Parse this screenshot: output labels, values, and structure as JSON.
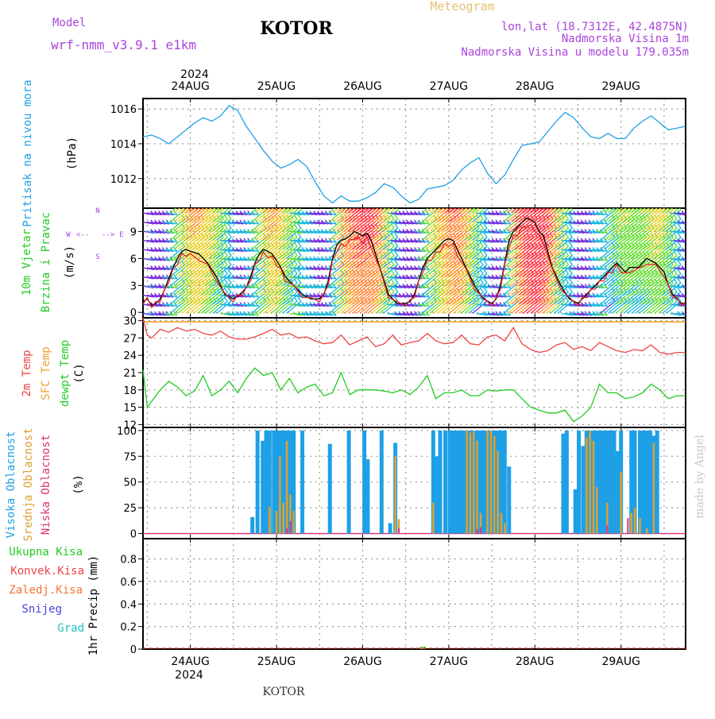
{
  "header": {
    "model_label": "Model",
    "model_value": "wrf-nmm_v3.9.1 e1km",
    "station": "KOTOR",
    "meteogram_label": "Meteogram",
    "lonlat": "lon,lat (18.7312E, 42.4875N)",
    "elevation": "Nadmorska Visina 1m",
    "model_elevation": "Nadmorska Visina u modelu 179.035m"
  },
  "footer": {
    "station": "KOTOR",
    "watermark": "made by Angel"
  },
  "colors": {
    "pressure": "#1ea0e6",
    "wind_axis_label": "#22cc22",
    "temp2m": "#ee4444",
    "sfc_temp": "#f0a030",
    "dewpoint": "#22cc22",
    "high_cloud": "#1ea0e6",
    "mid_cloud": "#e0a030",
    "low_cloud": "#e0307a",
    "total_precip": "#22cc22",
    "conv_precip": "#ee4444",
    "frozen_precip": "#f07830",
    "snow": "#4444dd",
    "hail": "#22c0c0",
    "model_text": "#aa44dd",
    "meteogram_text": "#e8c070"
  },
  "chart_data": [
    {
      "type": "line",
      "title": "",
      "ylabel_lines": [
        "Pritisak na nivou mora",
        "(hPa)"
      ],
      "x_unit": "days since 24AUG 00 UTC",
      "xlim": [
        -0.55,
        5.75
      ],
      "ylim": [
        1010.3,
        1016.6
      ],
      "yticks": [
        1012,
        1014,
        1016
      ],
      "series": [
        {
          "x": [
            -0.55,
            -0.45,
            -0.35,
            -0.25,
            -0.15,
            -0.05,
            0.05,
            0.15,
            0.25,
            0.35,
            0.45,
            0.55,
            0.65,
            0.75,
            0.85,
            0.95,
            1.05,
            1.15,
            1.25,
            1.35,
            1.45,
            1.55,
            1.65,
            1.75,
            1.85,
            1.95,
            2.05,
            2.15,
            2.25,
            2.35,
            2.45,
            2.55,
            2.65,
            2.75,
            2.85,
            2.95,
            3.05,
            3.15,
            3.25,
            3.35,
            3.45,
            3.55,
            3.65,
            3.75,
            3.85,
            3.95,
            4.05,
            4.15,
            4.25,
            4.35,
            4.45,
            4.55,
            4.65,
            4.75,
            4.85,
            4.95,
            5.05,
            5.15,
            5.25,
            5.35,
            5.45,
            5.55,
            5.65,
            5.75
          ],
          "y": [
            1014.4,
            1014.5,
            1014.3,
            1014.0,
            1014.4,
            1014.8,
            1015.2,
            1015.5,
            1015.3,
            1015.6,
            1016.2,
            1015.9,
            1015.0,
            1014.3,
            1013.6,
            1013.0,
            1012.6,
            1012.8,
            1013.1,
            1012.7,
            1011.8,
            1011.0,
            1010.6,
            1011.0,
            1010.7,
            1010.7,
            1010.9,
            1011.2,
            1011.7,
            1011.5,
            1011.0,
            1010.6,
            1010.8,
            1011.4,
            1011.5,
            1011.6,
            1011.9,
            1012.5,
            1012.9,
            1013.2,
            1012.3,
            1011.7,
            1012.2,
            1013.1,
            1013.9,
            1014.0,
            1014.1,
            1014.7,
            1015.3,
            1015.8,
            1015.5,
            1014.9,
            1014.4,
            1014.3,
            1014.6,
            1014.3,
            1014.3,
            1014.9,
            1015.3,
            1015.6,
            1015.2,
            1014.8,
            1014.9,
            1015.0
          ]
        }
      ]
    },
    {
      "type": "line",
      "title": "",
      "ylabel_lines": [
        "10m Vjetar",
        "Brzina i Pravac",
        "(m/s)"
      ],
      "compass": {
        "n": "N",
        "w": "W",
        "e": "E",
        "s": "S",
        "arrow_left": "<--",
        "arrow_right": "-->"
      },
      "x_unit": "days since 24AUG 00 UTC",
      "xlim": [
        -0.55,
        5.75
      ],
      "ylim": [
        -0.6,
        11.6
      ],
      "yticks": [
        0,
        3,
        6,
        9
      ],
      "series": [
        {
          "name": "speed",
          "x": [
            -0.55,
            -0.5,
            -0.45,
            -0.4,
            -0.35,
            -0.3,
            -0.25,
            -0.2,
            -0.15,
            -0.1,
            -0.05,
            0.0,
            0.1,
            0.2,
            0.3,
            0.4,
            0.5,
            0.55,
            0.6,
            0.65,
            0.7,
            0.75,
            0.8,
            0.85,
            0.9,
            0.95,
            1.0,
            1.05,
            1.1,
            1.2,
            1.3,
            1.4,
            1.5,
            1.55,
            1.6,
            1.65,
            1.7,
            1.75,
            1.8,
            1.85,
            1.9,
            1.95,
            2.0,
            2.05,
            2.1,
            2.2,
            2.3,
            2.4,
            2.5,
            2.55,
            2.6,
            2.65,
            2.7,
            2.75,
            2.8,
            2.85,
            2.9,
            2.95,
            3.0,
            3.05,
            3.1,
            3.2,
            3.3,
            3.4,
            3.5,
            3.55,
            3.6,
            3.65,
            3.7,
            3.75,
            3.8,
            3.85,
            3.9,
            3.95,
            4.0,
            4.05,
            4.1,
            4.2,
            4.3,
            4.4,
            4.5,
            4.55,
            4.6,
            4.65,
            4.7,
            4.75,
            4.8,
            4.85,
            4.9,
            4.95,
            5.0,
            5.05,
            5.1,
            5.2,
            5.3,
            5.4,
            5.5,
            5.55,
            5.6,
            5.65,
            5.7,
            5.75
          ],
          "y": [
            1.2,
            1.5,
            0.8,
            1.0,
            1.5,
            2.5,
            3.8,
            5.0,
            6.0,
            6.8,
            7.0,
            6.8,
            6.5,
            5.5,
            4.0,
            2.0,
            1.5,
            1.8,
            2.2,
            2.8,
            4.0,
            5.5,
            6.5,
            7.0,
            6.8,
            6.5,
            5.8,
            5.0,
            4.0,
            3.0,
            2.0,
            1.5,
            1.5,
            2.0,
            3.5,
            6.0,
            7.5,
            8.0,
            8.2,
            8.5,
            9.0,
            8.8,
            8.5,
            8.8,
            8.0,
            5.0,
            2.0,
            1.0,
            1.0,
            1.2,
            2.0,
            3.5,
            5.0,
            6.0,
            6.5,
            7.0,
            7.5,
            8.0,
            8.2,
            8.0,
            7.0,
            5.0,
            3.0,
            1.5,
            1.0,
            1.5,
            3.0,
            5.5,
            8.0,
            9.0,
            9.5,
            10.0,
            10.5,
            10.3,
            10.0,
            9.0,
            8.5,
            5.0,
            3.0,
            1.5,
            1.0,
            1.5,
            2.0,
            2.5,
            3.0,
            3.5,
            4.0,
            4.5,
            5.0,
            5.5,
            5.0,
            4.5,
            5.0,
            5.0,
            6.0,
            5.5,
            4.5,
            3.0,
            2.0,
            1.5,
            1.0,
            1.0
          ]
        }
      ]
    },
    {
      "type": "line",
      "title": "",
      "ylabel_lines": [
        "2m Temp",
        "SFC Temp",
        "dewpt Temp",
        "(C)"
      ],
      "x_unit": "days since 24AUG 00 UTC",
      "xlim": [
        -0.55,
        5.75
      ],
      "ylim": [
        11.5,
        30.5
      ],
      "yticks": [
        12,
        15,
        18,
        21,
        24,
        27,
        30
      ],
      "series": [
        {
          "name": "2m Temp",
          "x": [
            -0.55,
            -0.5,
            -0.45,
            -0.35,
            -0.25,
            -0.15,
            -0.05,
            0.05,
            0.15,
            0.25,
            0.35,
            0.45,
            0.55,
            0.65,
            0.75,
            0.85,
            0.95,
            1.05,
            1.15,
            1.25,
            1.35,
            1.45,
            1.55,
            1.65,
            1.75,
            1.85,
            1.95,
            2.05,
            2.15,
            2.25,
            2.35,
            2.45,
            2.55,
            2.65,
            2.75,
            2.85,
            2.95,
            3.05,
            3.15,
            3.25,
            3.35,
            3.45,
            3.55,
            3.65,
            3.75,
            3.85,
            3.95,
            4.05,
            4.15,
            4.25,
            4.35,
            4.45,
            4.55,
            4.65,
            4.75,
            4.85,
            4.95,
            5.05,
            5.15,
            5.25,
            5.35,
            5.45,
            5.55,
            5.65,
            5.75
          ],
          "y": [
            30.5,
            27.5,
            27.0,
            28.5,
            28.0,
            28.8,
            28.2,
            28.5,
            27.8,
            27.5,
            28.2,
            27.2,
            26.8,
            26.8,
            27.2,
            27.8,
            28.5,
            27.5,
            27.8,
            27.0,
            27.2,
            26.5,
            26.0,
            26.2,
            27.5,
            25.8,
            26.5,
            27.2,
            25.5,
            26.0,
            27.5,
            25.8,
            26.2,
            26.5,
            27.8,
            26.5,
            26.0,
            26.2,
            27.5,
            26.0,
            25.8,
            27.2,
            27.5,
            26.5,
            28.8,
            26.0,
            25.0,
            24.5,
            24.8,
            25.8,
            26.2,
            25.0,
            25.5,
            24.8,
            26.2,
            25.5,
            24.8,
            24.5,
            25.0,
            24.8,
            25.8,
            24.5,
            24.2,
            24.5,
            24.5
          ]
        },
        {
          "name": "SFC Temp",
          "x": [
            -0.55,
            5.75
          ],
          "y": [
            29.8,
            29.8
          ]
        },
        {
          "name": "dewpt Temp",
          "x": [
            -0.55,
            -0.5,
            -0.45,
            -0.35,
            -0.25,
            -0.15,
            -0.05,
            0.05,
            0.15,
            0.25,
            0.35,
            0.45,
            0.55,
            0.65,
            0.75,
            0.85,
            0.95,
            1.05,
            1.15,
            1.25,
            1.35,
            1.45,
            1.55,
            1.65,
            1.75,
            1.85,
            1.95,
            2.05,
            2.15,
            2.25,
            2.35,
            2.45,
            2.55,
            2.65,
            2.75,
            2.85,
            2.95,
            3.05,
            3.15,
            3.25,
            3.35,
            3.45,
            3.55,
            3.65,
            3.75,
            3.85,
            3.95,
            4.05,
            4.15,
            4.25,
            4.35,
            4.45,
            4.55,
            4.65,
            4.75,
            4.85,
            4.95,
            5.05,
            5.15,
            5.25,
            5.35,
            5.45,
            5.55,
            5.65,
            5.75
          ],
          "y": [
            21.5,
            15.0,
            16.0,
            18.0,
            19.5,
            18.5,
            17.0,
            17.8,
            20.5,
            17.0,
            18.0,
            19.5,
            17.5,
            20.0,
            21.8,
            20.5,
            21.0,
            18.0,
            20.0,
            17.5,
            18.5,
            19.0,
            17.0,
            17.5,
            21.0,
            17.2,
            18.0,
            18.0,
            18.0,
            17.8,
            17.5,
            18.0,
            17.2,
            18.5,
            20.5,
            16.5,
            17.5,
            17.5,
            18.0,
            17.0,
            17.0,
            18.0,
            17.8,
            18.0,
            18.0,
            16.5,
            15.0,
            14.5,
            14.0,
            14.0,
            14.5,
            12.5,
            13.5,
            15.0,
            19.0,
            17.5,
            17.5,
            16.5,
            16.8,
            17.5,
            19.0,
            18.0,
            16.5,
            17.0,
            17.0
          ]
        }
      ]
    },
    {
      "type": "bar",
      "title": "",
      "ylabel_lines": [
        "Visoka Oblacnost",
        "Srednja Oblacnost",
        "Niska  Oblacnost",
        "(%)"
      ],
      "x_unit": "days since 24AUG 00 UTC",
      "xlim": [
        -0.55,
        5.75
      ],
      "ylim": [
        -5,
        103
      ],
      "yticks": [
        0,
        25,
        50,
        75,
        100
      ],
      "series": [
        {
          "name": "Visoka Oblacnost",
          "x": [
            0.72,
            0.78,
            0.84,
            0.88,
            0.92,
            0.97,
            1.0,
            1.04,
            1.08,
            1.12,
            1.16,
            1.2,
            1.3,
            1.62,
            1.84,
            2.02,
            2.06,
            2.22,
            2.32,
            2.38,
            2.82,
            2.86,
            2.9,
            2.96,
            3.01,
            3.05,
            3.09,
            3.13,
            3.17,
            3.21,
            3.25,
            3.29,
            3.33,
            3.37,
            3.41,
            3.45,
            3.49,
            3.53,
            3.57,
            3.61,
            3.65,
            3.7,
            4.33,
            4.37,
            4.47,
            4.51,
            4.56,
            4.6,
            4.64,
            4.68,
            4.72,
            4.76,
            4.8,
            4.84,
            4.88,
            4.92,
            4.96,
            5.0,
            5.12,
            5.16,
            5.22,
            5.26,
            5.3,
            5.34,
            5.38,
            5.42
          ],
          "y": [
            16,
            100,
            90,
            100,
            100,
            100,
            100,
            100,
            100,
            100,
            100,
            100,
            100,
            87,
            100,
            100,
            72,
            100,
            10,
            88,
            100,
            75,
            100,
            100,
            100,
            100,
            100,
            100,
            100,
            100,
            100,
            100,
            100,
            100,
            100,
            100,
            100,
            100,
            100,
            100,
            100,
            65,
            97,
            100,
            43,
            100,
            85,
            100,
            100,
            100,
            100,
            100,
            100,
            100,
            100,
            100,
            80,
            100,
            100,
            100,
            100,
            100,
            100,
            100,
            95,
            100
          ]
        },
        {
          "name": "Srednja Oblacnost",
          "x": [
            0.92,
            1.0,
            1.04,
            1.08,
            1.12,
            1.16,
            1.2,
            2.38,
            2.42,
            2.82,
            3.21,
            3.25,
            3.29,
            3.33,
            3.37,
            3.45,
            3.49,
            3.53,
            3.57,
            3.61,
            3.65,
            4.6,
            4.64,
            4.68,
            4.72,
            4.84,
            5.0,
            5.12,
            5.16,
            5.22,
            5.3,
            5.38
          ],
          "y": [
            26,
            22,
            75,
            30,
            90,
            38,
            22,
            75,
            14,
            30,
            100,
            98,
            100,
            90,
            20,
            100,
            100,
            95,
            80,
            20,
            10,
            93,
            100,
            90,
            45,
            30,
            60,
            20,
            25,
            15,
            5,
            88
          ]
        },
        {
          "name": "Niska  Oblacnost",
          "x": [
            1.12,
            1.16,
            2.42,
            3.33,
            3.37,
            4.84,
            5.08
          ],
          "y": [
            5,
            12,
            5,
            4,
            6,
            8,
            15
          ]
        }
      ]
    },
    {
      "type": "bar",
      "title": "",
      "ylabel_lines": [
        "1hr Precip (mm)"
      ],
      "legend": [
        "Ukupna Kisa",
        "Konvek.Kisa",
        "Zaledj.Kisa",
        "Snijeg",
        "Grad"
      ],
      "x_unit": "days since 24AUG 00 UTC",
      "xlim": [
        -0.55,
        5.75
      ],
      "ylim": [
        0,
        0.98
      ],
      "yticks": [
        0,
        0.2,
        0.4,
        0.6,
        0.8
      ],
      "series": [
        {
          "name": "Ukupna Kisa",
          "x": [
            2.68,
            2.72
          ],
          "y": [
            0.02,
            0.02
          ]
        },
        {
          "name": "Zaledj.Kisa",
          "x": [
            2.7
          ],
          "y": [
            0.015
          ]
        }
      ]
    }
  ],
  "xaxis": {
    "year": "2024",
    "top_year": "2024",
    "day_labels": [
      "24AUG",
      "25AUG",
      "26AUG",
      "27AUG",
      "28AUG",
      "29AUG"
    ]
  }
}
